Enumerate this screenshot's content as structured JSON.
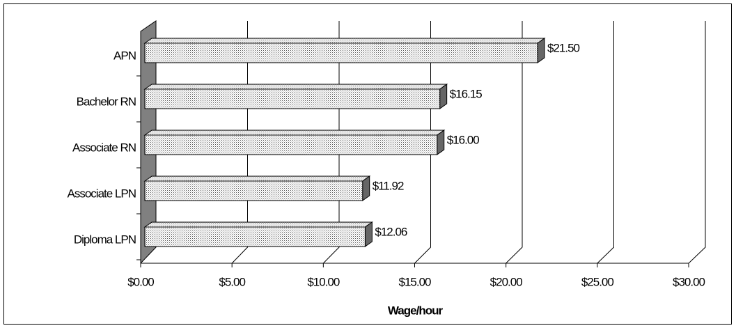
{
  "chart_data": {
    "type": "bar3d_horizontal",
    "categories": [
      "APN",
      "Bachelor RN",
      "Associate RN",
      "Associate LPN",
      "Diploma LPN"
    ],
    "values": [
      21.5,
      16.15,
      16.0,
      11.92,
      12.06
    ],
    "value_labels": [
      "$21.50",
      "$16.15",
      "$16.00",
      "$11.92",
      "$12.06"
    ],
    "color": "#d9d9d9",
    "xlabel": "Wage/hour",
    "xlim": [
      0,
      30
    ],
    "xticks": [
      {
        "value": 0,
        "label": "$0.00"
      },
      {
        "value": 5,
        "label": "$5.00"
      },
      {
        "value": 10,
        "label": "$10.00"
      },
      {
        "value": 15,
        "label": "$15.00"
      },
      {
        "value": 20,
        "label": "$20.00"
      },
      {
        "value": 25,
        "label": "$25.00"
      },
      {
        "value": 30,
        "label": "$30.00"
      }
    ],
    "grid": true
  }
}
